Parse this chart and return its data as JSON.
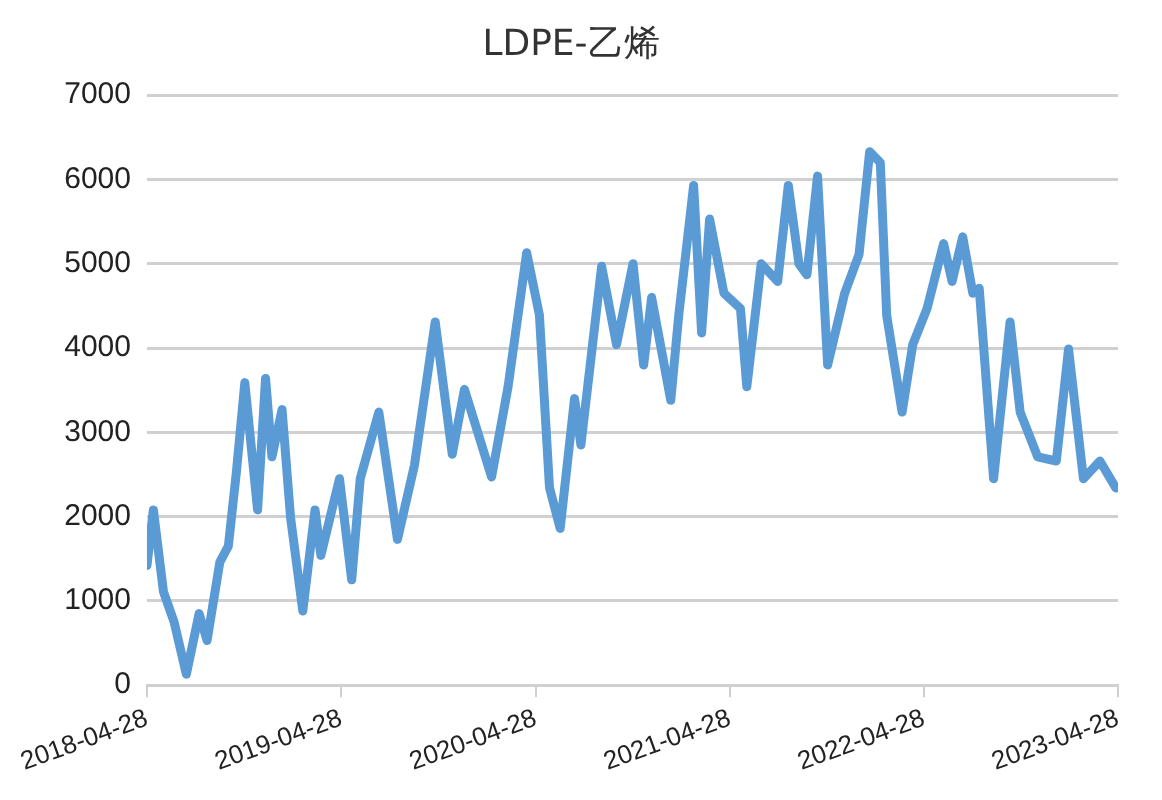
{
  "chart_data": {
    "type": "line",
    "title": "LDPE-乙烯",
    "x": [
      "2018-04-28",
      "2018-05-10",
      "2018-05-29",
      "2018-06-18",
      "2018-07-11",
      "2018-08-04",
      "2018-08-19",
      "2018-09-12",
      "2018-09-28",
      "2018-10-13",
      "2018-10-29",
      "2018-11-22",
      "2018-12-07",
      "2018-12-19",
      "2019-01-07",
      "2019-01-23",
      "2019-02-15",
      "2019-03-10",
      "2019-03-21",
      "2019-04-25",
      "2019-05-18",
      "2019-06-03",
      "2019-07-08",
      "2019-08-12",
      "2019-09-13",
      "2019-10-22",
      "2019-11-23",
      "2019-12-16",
      "2020-02-05",
      "2020-03-07",
      "2020-04-11",
      "2020-05-05",
      "2020-05-24",
      "2020-06-13",
      "2020-07-10",
      "2020-07-22",
      "2020-08-30",
      "2020-09-27",
      "2020-10-28",
      "2020-11-17",
      "2020-12-02",
      "2021-01-07",
      "2021-01-22",
      "2021-02-19",
      "2021-03-06",
      "2021-03-21",
      "2021-04-17",
      "2021-05-18",
      "2021-05-30",
      "2021-06-26",
      "2021-07-27",
      "2021-08-16",
      "2021-09-05",
      "2021-09-20",
      "2021-10-10",
      "2021-10-29",
      "2021-11-30",
      "2021-12-27",
      "2022-01-16",
      "2022-02-05",
      "2022-02-17",
      "2022-03-18",
      "2022-04-07",
      "2022-05-04",
      "2022-06-04",
      "2022-06-20",
      "2022-07-10",
      "2022-07-29",
      "2022-08-10",
      "2022-09-06",
      "2022-10-07",
      "2022-10-26",
      "2022-11-28",
      "2023-01-02",
      "2023-01-25",
      "2023-02-22",
      "2023-03-25",
      "2023-04-24"
    ],
    "series": [
      {
        "color": "#5b9bd5",
        "values": [
          1420,
          2080,
          1110,
          750,
          130,
          850,
          530,
          1460,
          1650,
          2520,
          3590,
          2080,
          3640,
          2710,
          3270,
          1990,
          880,
          2080,
          1540,
          2450,
          1250,
          2450,
          3240,
          1730,
          2610,
          4310,
          2740,
          3510,
          2470,
          3540,
          5130,
          4390,
          2340,
          1860,
          3400,
          2850,
          4970,
          4040,
          5000,
          3800,
          4600,
          3380,
          4390,
          5930,
          4180,
          5530,
          4650,
          4470,
          3540,
          5000,
          4790,
          5930,
          5000,
          4870,
          6040,
          3800,
          4650,
          5110,
          6330,
          6200,
          4390,
          3240,
          4040,
          4470,
          5240,
          4790,
          5320,
          4650,
          4710,
          2450,
          4310,
          3240,
          2710,
          2660,
          3990,
          2450,
          2660,
          2340
        ]
      }
    ],
    "xlim": [
      "2018-04-28",
      "2023-04-28"
    ],
    "xticks": [
      "2018-04-28",
      "2019-04-28",
      "2020-04-28",
      "2021-04-28",
      "2022-04-28",
      "2023-04-28"
    ],
    "ylim": [
      0,
      7000
    ],
    "yticks": [
      0,
      1000,
      2000,
      3000,
      4000,
      5000,
      6000,
      7000
    ],
    "grid": "y",
    "legend": false,
    "marker": "none",
    "line_style": "solid"
  }
}
